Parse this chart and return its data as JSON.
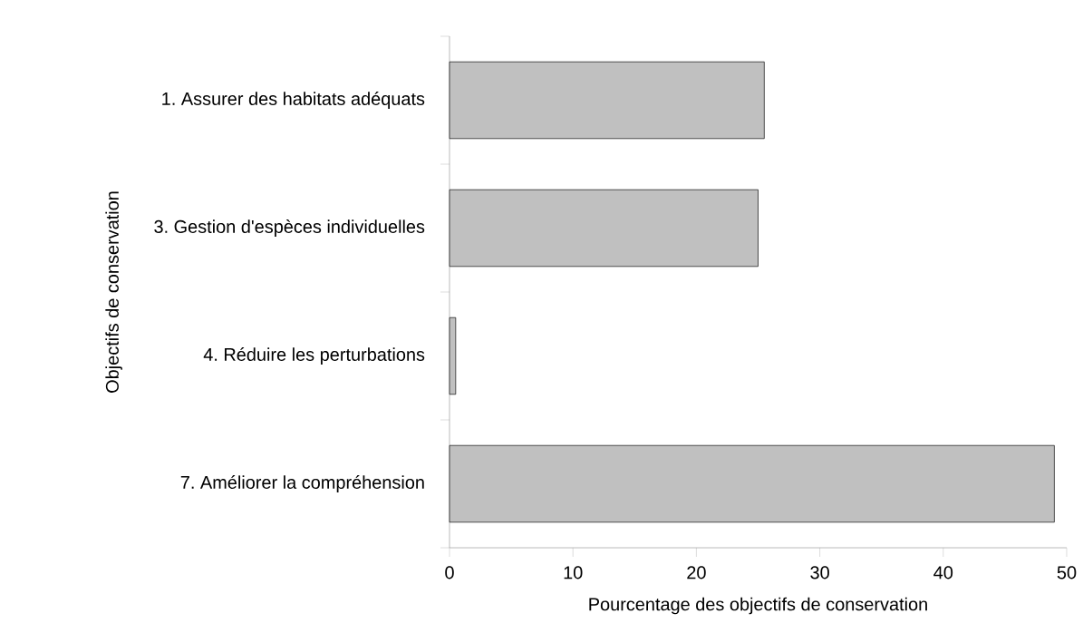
{
  "chart_data": {
    "type": "bar",
    "orientation": "horizontal",
    "xlabel": "Pourcentage des objectifs de conservation",
    "ylabel": "Objectifs de conservation",
    "categories": [
      "1. Assurer des habitats adéquats",
      "3. Gestion d'espèces individuelles",
      "4. Réduire les perturbations",
      "7. Améliorer la compréhension"
    ],
    "values": [
      25.5,
      25.0,
      0.5,
      49.0
    ],
    "color": "#c0c0c0",
    "xlim": [
      0,
      50
    ],
    "xticks": [
      0,
      10,
      20,
      30,
      40,
      50
    ]
  }
}
